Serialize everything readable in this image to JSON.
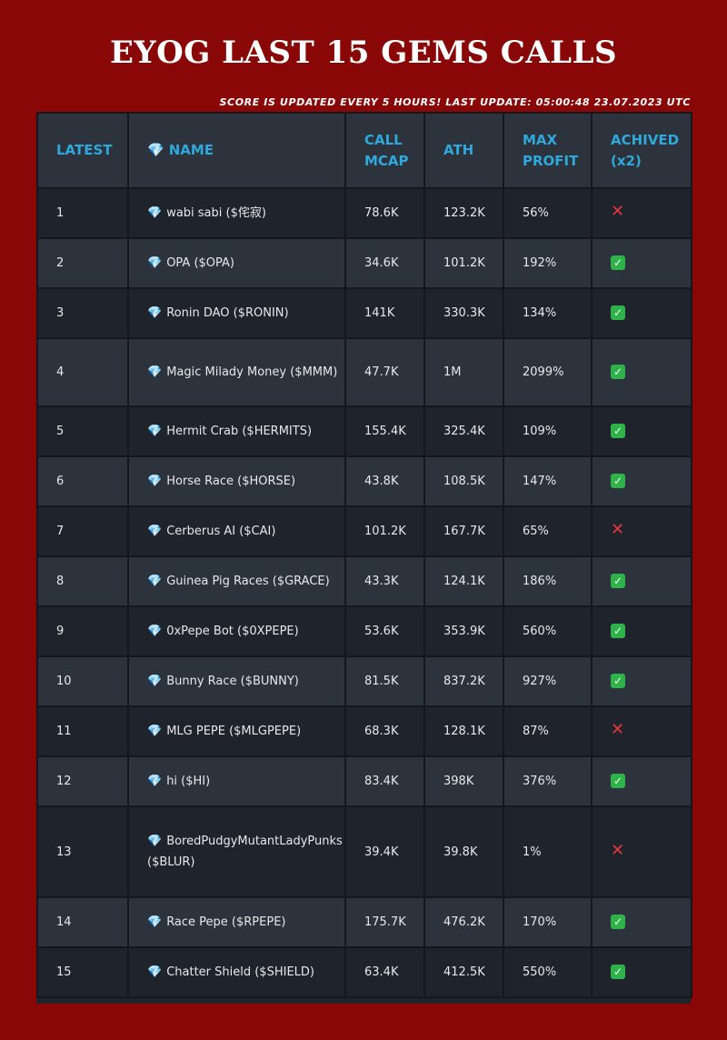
{
  "header": {
    "title": "EYOG LAST 15 GEMS CALLS",
    "subtitle": "SCORE IS UPDATED EVERY 5 HOURS! LAST UPDATE: 05:00:48 23.07.2023 UTC"
  },
  "table": {
    "columns": {
      "latest": "LATEST",
      "name": "NAME",
      "call_mcap": "CALL MCAP",
      "ath": "ATH",
      "max_profit": "MAX PROFIT",
      "achived": "ACHIVED (x2)"
    },
    "gem_icon": "gem-icon",
    "rows": [
      {
        "latest": "1",
        "name": "wabi sabi ($侘寂)",
        "call_mcap": "78.6K",
        "ath": "123.2K",
        "max_profit": "56%",
        "achived": "❌"
      },
      {
        "latest": "2",
        "name": "OPA ($OPA)",
        "call_mcap": "34.6K",
        "ath": "101.2K",
        "max_profit": "192%",
        "achived": "✅"
      },
      {
        "latest": "3",
        "name": "Ronin DAO ($RONIN)",
        "call_mcap": "141K",
        "ath": "330.3K",
        "max_profit": "134%",
        "achived": "✅"
      },
      {
        "latest": "4",
        "name": "Magic Milady Money ($MMM)",
        "call_mcap": "47.7K",
        "ath": "1M",
        "max_profit": "2099%",
        "achived": "✅"
      },
      {
        "latest": "5",
        "name": "Hermit Crab ($HERMITS)",
        "call_mcap": "155.4K",
        "ath": "325.4K",
        "max_profit": "109%",
        "achived": "✅"
      },
      {
        "latest": "6",
        "name": "Horse Race ($HORSE)",
        "call_mcap": "43.8K",
        "ath": "108.5K",
        "max_profit": "147%",
        "achived": "✅"
      },
      {
        "latest": "7",
        "name": "Cerberus AI ($CAI)",
        "call_mcap": "101.2K",
        "ath": "167.7K",
        "max_profit": "65%",
        "achived": "❌"
      },
      {
        "latest": "8",
        "name": "Guinea Pig Races ($GRACE)",
        "call_mcap": "43.3K",
        "ath": "124.1K",
        "max_profit": "186%",
        "achived": "✅"
      },
      {
        "latest": "9",
        "name": "0xPepe Bot ($0XPEPE)",
        "call_mcap": "53.6K",
        "ath": "353.9K",
        "max_profit": "560%",
        "achived": "✅"
      },
      {
        "latest": "10",
        "name": "Bunny Race ($BUNNY)",
        "call_mcap": "81.5K",
        "ath": "837.2K",
        "max_profit": "927%",
        "achived": "✅"
      },
      {
        "latest": "11",
        "name": "MLG PEPE ($MLGPEPE)",
        "call_mcap": "68.3K",
        "ath": "128.1K",
        "max_profit": "87%",
        "achived": "❌"
      },
      {
        "latest": "12",
        "name": "hi ($HI)",
        "call_mcap": "83.4K",
        "ath": "398K",
        "max_profit": "376%",
        "achived": "✅"
      },
      {
        "latest": "13",
        "name": "BoredPudgyMutantLadyPunks ($BLUR)",
        "call_mcap": "39.4K",
        "ath": "39.8K",
        "max_profit": "1%",
        "achived": "❌"
      },
      {
        "latest": "14",
        "name": "Race Pepe ($RPEPE)",
        "call_mcap": "175.7K",
        "ath": "476.2K",
        "max_profit": "170%",
        "achived": "✅"
      },
      {
        "latest": "15",
        "name": "Chatter Shield ($SHIELD)",
        "call_mcap": "63.4K",
        "ath": "412.5K",
        "max_profit": "550%",
        "achived": "✅"
      }
    ]
  },
  "colors": {
    "background": "#8a0707",
    "header_text": "#2fa8dc",
    "row_dark": "#1f232b",
    "row_light": "#2d333c",
    "check": "#2fb24a",
    "cross": "#e5373d"
  }
}
